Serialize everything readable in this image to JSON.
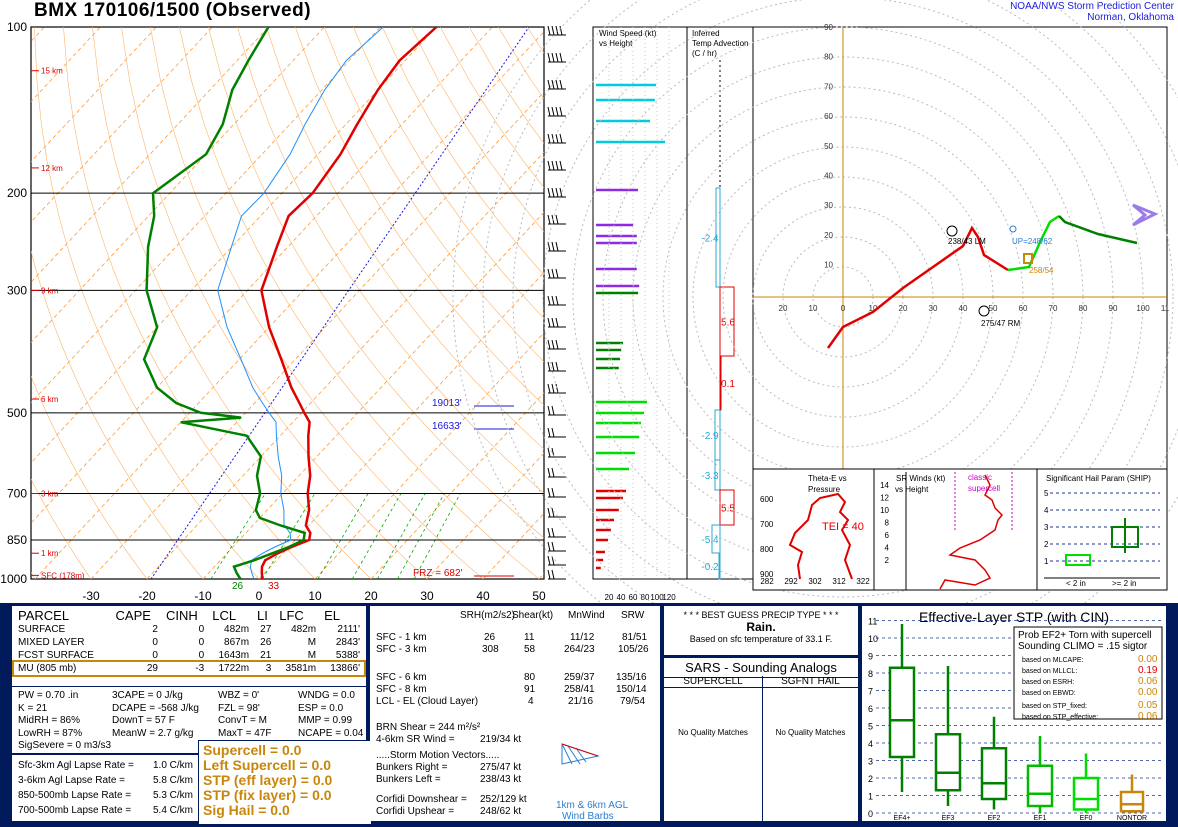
{
  "header": {
    "title": "BMX   170106/1500  (Observed)",
    "org_line1": "NOAA/NWS Storm Prediction Center",
    "org_line2": "Norman, Oklahoma"
  },
  "skewt": {
    "pressure_labels": [
      "100",
      "200",
      "300",
      "500",
      "700",
      "850",
      "1000"
    ],
    "height_labels": [
      "15 km",
      "12 km",
      "9 km",
      "6 km",
      "3 km",
      "1 km",
      "SFC (178m)"
    ],
    "temp_ticks": [
      "-30",
      "-20",
      "-10",
      "0",
      "10",
      "20",
      "30",
      "40",
      "50"
    ],
    "annotations": {
      "lvl1": "19013'",
      "lvl2": "16633'",
      "frz": "FRZ = 682'",
      "sfc_td": "26",
      "sfc_t": "33"
    },
    "colors": {
      "temp": "#e00000",
      "dewpoint": "#008000",
      "wetbulb": "#1e90ff",
      "isotherm": "#ff9933",
      "mixing": "#00aa00"
    }
  },
  "wind_panel": {
    "title1": "Wind Speed (kt)",
    "title2": "vs Height",
    "ticks": [
      "20",
      "40",
      "60",
      "80",
      "100",
      "120"
    ]
  },
  "advection_panel": {
    "title1": "Inferred",
    "title2": "Temp Advection",
    "title3": "(C / hr)",
    "values": [
      "-2.4",
      "5.6",
      "0.1",
      "-2.9",
      "-3.3",
      "5.5",
      "-5.4",
      "-0.2"
    ]
  },
  "hodograph": {
    "x_ticks": [
      "20",
      "10",
      "0",
      "10",
      "20",
      "30",
      "40",
      "50",
      "60",
      "70",
      "80",
      "90",
      "100",
      "11"
    ],
    "y_ticks": [
      "90",
      "80",
      "70",
      "60",
      "50",
      "40",
      "30",
      "20",
      "10"
    ],
    "labels": {
      "lm": "238/43 LM",
      "up": "UP=248/62",
      "rm": "275/47 RM",
      "srw": "258/54"
    }
  },
  "theta_panel": {
    "title1": "Theta-E vs",
    "title2": "Pressure",
    "tei": "TEI = 40",
    "p_ticks": [
      "600",
      "700",
      "800",
      "900"
    ],
    "x_ticks": [
      "282",
      "292",
      "302",
      "312",
      "322"
    ]
  },
  "srwinds_panel": {
    "title1": "SR Winds (kt)",
    "title2": "vs Height",
    "classic1": "classic",
    "classic2": "supercell",
    "h_ticks": [
      "14",
      "12",
      "10",
      "8",
      "6",
      "4",
      "2"
    ]
  },
  "ship_panel": {
    "title": "Significant Hail Param (SHIP)",
    "ticks": [
      "5",
      "4",
      "3",
      "2",
      "1"
    ],
    "xl1": "< 2 in",
    "xl2": ">= 2 in"
  },
  "parcel_table": {
    "headers": [
      "PARCEL",
      "CAPE",
      "CINH",
      "LCL",
      "LI",
      "LFC",
      "EL"
    ],
    "rows": [
      [
        "SURFACE",
        "2",
        "0",
        "482m",
        "27",
        "482m",
        "2111'"
      ],
      [
        "MIXED LAYER",
        "0",
        "0",
        "867m",
        "26",
        "M",
        "2843'"
      ],
      [
        "FCST SURFACE",
        "0",
        "0",
        "1643m",
        "21",
        "M",
        "5388'"
      ],
      [
        "MU  (805 mb)",
        "29",
        "-3",
        "1722m",
        "3",
        "3581m",
        "13866'"
      ]
    ],
    "indices": [
      [
        "PW = 0.70 .in",
        "3CAPE = 0 J/kg",
        "WBZ = 0'",
        "WNDG = 0.0"
      ],
      [
        "K = 21",
        "DCAPE = -568 J/kg",
        "FZL = 98'",
        "ESP = 0.0"
      ],
      [
        "MidRH = 86%",
        "DownT = 57 F",
        "ConvT = M",
        "MMP = 0.99"
      ],
      [
        "LowRH = 87%",
        "MeanW = 2.7 g/kg",
        "MaxT = 47F",
        "NCAPE = 0.04"
      ],
      [
        "SigSevere = 0 m3/s3",
        "",
        "",
        ""
      ]
    ],
    "lapse": [
      [
        "Sfc-3km Agl Lapse Rate =",
        "1.0 C/km"
      ],
      [
        "3-6km Agl Lapse Rate =",
        "5.8 C/km"
      ],
      [
        "850-500mb Lapse Rate =",
        "5.3 C/km"
      ],
      [
        "700-500mb Lapse Rate =",
        "5.4 C/km"
      ]
    ],
    "composites": [
      "Supercell = 0.0",
      "Left Supercell = 0.0",
      "STP (eff layer) = 0.0",
      "STP (fix layer) = 0.0",
      "Sig Hail = 0.0"
    ]
  },
  "kinematics": {
    "headers": [
      "SRH(m2/s2)",
      "Shear(kt)",
      "MnWind",
      "SRW"
    ],
    "rows": [
      [
        "SFC - 1 km",
        "26",
        "11",
        "11/12",
        "81/51"
      ],
      [
        "SFC - 3 km",
        "308",
        "58",
        "264/23",
        "105/26"
      ],
      [
        "SFC - 6 km",
        "",
        "80",
        "259/37",
        "135/16"
      ],
      [
        "SFC - 8 km",
        "",
        "91",
        "258/41",
        "150/14"
      ],
      [
        "LCL - EL (Cloud Layer)",
        "",
        "4",
        "21/16",
        "79/54"
      ]
    ],
    "brn": "BRN Shear =  244 m²/s²",
    "srwind": [
      "4-6km SR Wind =",
      "219/34 kt"
    ],
    "motion_title": ".....Storm Motion Vectors.....",
    "motion": [
      [
        "Bunkers Right =",
        "275/47 kt"
      ],
      [
        "Bunkers Left =",
        "238/43 kt"
      ],
      [
        "Corfidi Downshear =",
        "252/129 kt"
      ],
      [
        "Corfidi Upshear =",
        "248/62 kt"
      ]
    ],
    "barbs1": "1km & 6km AGL",
    "barbs2": "Wind Barbs"
  },
  "precip": {
    "title": "* * * BEST GUESS PRECIP TYPE * * *",
    "type": "Rain.",
    "basis": "Based on sfc temperature of 33.1 F."
  },
  "sars": {
    "title": "SARS - Sounding Analogs",
    "col1": "SUPERCELL",
    "col2": "SGFNT HAIL",
    "none1": "No Quality Matches",
    "none2": "No Quality Matches"
  },
  "stp": {
    "title": "Effective-Layer STP (with CIN)",
    "y_ticks": [
      "11",
      "10",
      "9",
      "8",
      "7",
      "6",
      "5",
      "4",
      "3",
      "2",
      "1",
      "0"
    ],
    "categories": [
      "EF4+",
      "EF3",
      "EF2",
      "EF1",
      "EF0",
      "NONTOR"
    ],
    "prob_title": "Prob EF2+ Torn with supercell",
    "prob_sub": "Sounding CLIMO = .15 sigtor",
    "probs": [
      [
        "based on MLCAPE:",
        "0.00"
      ],
      [
        "based on MLLCL:",
        "0.19"
      ],
      [
        "based on ESRH:",
        "0.06"
      ],
      [
        "based on EBWD:",
        "0.00"
      ],
      [
        "based on STP_fixed:",
        "0.05"
      ],
      [
        "based on STP_effective:",
        "0.06"
      ]
    ]
  },
  "chart_data": [
    {
      "type": "line",
      "title": "BMX   170106/1500  (Observed)",
      "xlabel": "",
      "ylabel": "",
      "ylim": [
        1000,
        100
      ],
      "xlim": [
        -30,
        50
      ],
      "series": [
        {
          "name": "",
          "p": [
            1000,
            975,
            950,
            925,
            900,
            875,
            850,
            825,
            800,
            775,
            750,
            700,
            650,
            600,
            550,
            520,
            500,
            480,
            450,
            400,
            350,
            300,
            250,
            220,
            200,
            170,
            150,
            130,
            115,
            100
          ],
          "values": [
            0.6,
            -0.5,
            -1.5,
            -2.0,
            -1.0,
            0.5,
            2.5,
            1.5,
            -0.5,
            -1.5,
            -2.5,
            -5.5,
            -8.0,
            -11.5,
            -15.0,
            -17.0,
            -19.5,
            -22.0,
            -26.0,
            -32.5,
            -40.0,
            -47.5,
            -52.0,
            -55.0,
            -54.5,
            -56.0,
            -58.0,
            -60.0,
            -61.0,
            -60.0
          ]
        },
        {
          "name": "",
          "p": [
            1000,
            975,
            950,
            925,
            900,
            875,
            850,
            825,
            800,
            775,
            750,
            700,
            650,
            600,
            550,
            520,
            510,
            500,
            480,
            450,
            400,
            350,
            300,
            250,
            220,
            200,
            170,
            150,
            130,
            115,
            100
          ],
          "values": [
            -3.3,
            -5.0,
            -6.5,
            -4.0,
            -2.0,
            0.0,
            1.5,
            0.5,
            -5.0,
            -10.0,
            -12.0,
            -14.0,
            -17.5,
            -20.0,
            -26.0,
            -40.0,
            -30.0,
            -38.0,
            -44.0,
            -50.0,
            -57.0,
            -60.0,
            -68.0,
            -75.0,
            -79.0,
            -83.0,
            -80.0,
            -82.0,
            -86.0,
            -88.0,
            -90.0
          ]
        }
      ]
    },
    {
      "type": "bar",
      "title": "Effective-Layer STP (with CIN)",
      "categories": [
        "EF4+",
        "EF3",
        "EF2",
        "EF1",
        "EF0",
        "NONTOR"
      ],
      "series": [
        {
          "name": "",
          "values": [
            {
              "min": 1.2,
              "q1": 3.2,
              "median": 5.3,
              "q3": 8.3,
              "max": 10.8
            },
            {
              "min": 0.4,
              "q1": 1.3,
              "median": 2.3,
              "q3": 4.5,
              "max": 8.4
            },
            {
              "min": 0.2,
              "q1": 0.8,
              "median": 1.7,
              "q3": 3.7,
              "max": 5.5
            },
            {
              "min": 0.0,
              "q1": 0.4,
              "median": 1.1,
              "q3": 2.7,
              "max": 4.4
            },
            {
              "min": 0.0,
              "q1": 0.2,
              "median": 0.8,
              "q3": 2.0,
              "max": 3.4
            },
            {
              "min": 0.0,
              "q1": 0.1,
              "median": 0.5,
              "q3": 1.2,
              "max": 2.2
            }
          ]
        }
      ],
      "ylim": [
        0,
        11
      ]
    }
  ]
}
